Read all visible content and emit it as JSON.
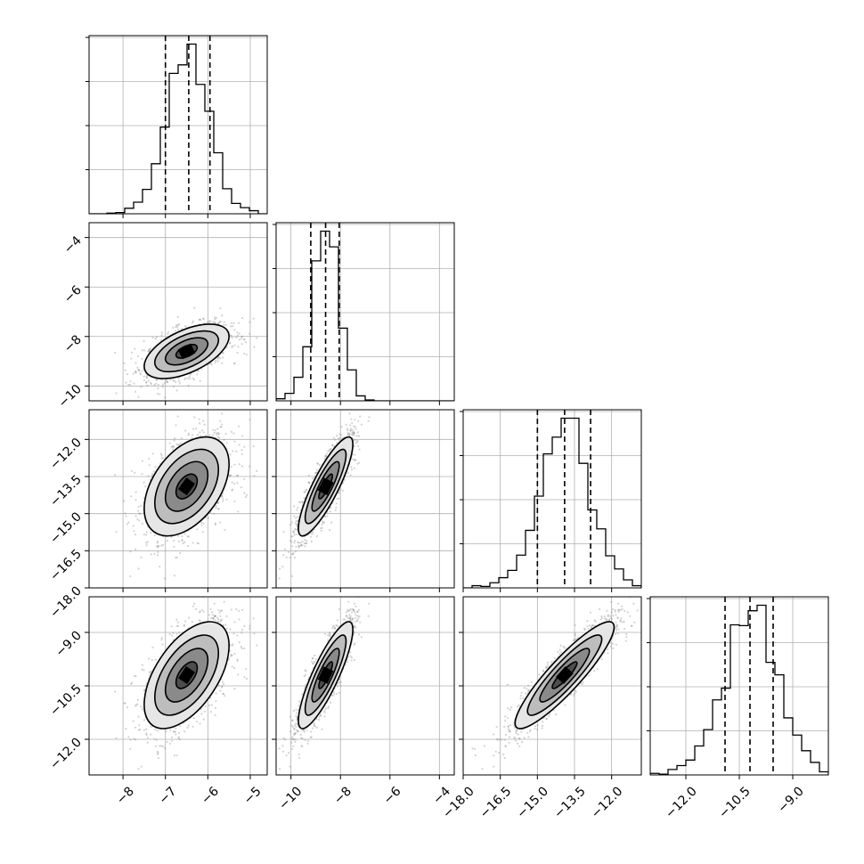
{
  "chart_data": {
    "type": "corner",
    "grid": true,
    "parameters": [
      {
        "range": [
          -8.8,
          -4.6
        ],
        "ticks": [
          -8,
          -7,
          -6,
          -5
        ],
        "tick_labels": [
          "−8",
          "−7",
          "−6",
          "−5"
        ],
        "mean": -6.5,
        "sd": 0.5,
        "quantiles": [
          -7.0,
          -6.45,
          -5.95
        ]
      },
      {
        "range": [
          -10.6,
          -3.4
        ],
        "ticks": [
          -10,
          -8,
          -6,
          -4
        ],
        "tick_labels": [
          "−10",
          "−8",
          "−6",
          "−4"
        ],
        "mean": -8.6,
        "sd": 0.55,
        "quantiles": [
          -9.2,
          -8.6,
          -8.05
        ]
      },
      {
        "range": [
          -18.0,
          -10.8
        ],
        "ticks": [
          -18.0,
          -16.5,
          -15.0,
          -13.5,
          -12.0
        ],
        "tick_labels": [
          "−18.0",
          "−16.5",
          "−15.0",
          "−13.5",
          "−12.0"
        ],
        "mean": -13.9,
        "sd": 1.0,
        "quantiles": [
          -15.0,
          -13.9,
          -12.85
        ]
      },
      {
        "range": [
          -13.0,
          -8.0
        ],
        "ticks": [
          -12.0,
          -10.5,
          -9.0
        ],
        "tick_labels": [
          "−12.0",
          "−10.5",
          "−9.0"
        ],
        "mean": -10.2,
        "sd": 0.75,
        "quantiles": [
          -10.9,
          -10.2,
          -9.55
        ]
      }
    ],
    "correlations": [
      {
        "i": 1,
        "j": 0,
        "r": 0.55
      },
      {
        "i": 2,
        "j": 0,
        "r": 0.45
      },
      {
        "i": 2,
        "j": 1,
        "r": 0.85
      },
      {
        "i": 3,
        "j": 0,
        "r": 0.55
      },
      {
        "i": 3,
        "j": 1,
        "r": 0.85
      },
      {
        "i": 3,
        "j": 2,
        "r": 0.9
      }
    ],
    "histogram_bins": 20,
    "colors": {
      "points": "#808080",
      "lines": "#000000",
      "grid": "#b0b0b0"
    }
  }
}
